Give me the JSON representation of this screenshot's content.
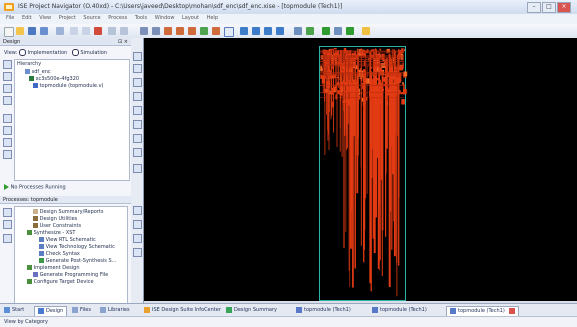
{
  "window": {
    "title": "ISE Project Navigator (O.40xd) - C:\\Users\\javeed\\Desktop\\mohan\\sdf_enc\\sdf_enc.xise - [topmodule (Tech1)]"
  },
  "menu": [
    "File",
    "Edit",
    "View",
    "Project",
    "Source",
    "Process",
    "Tools",
    "Window",
    "Layout",
    "Help"
  ],
  "design_panel": {
    "header": "Design",
    "view_label": "View:",
    "view_implementation": "Implementation",
    "view_simulation": "Simulation",
    "hierarchy_label": "Hierarchy",
    "tree": [
      "sdf_enc",
      "xc3s500e-4fg320",
      "topmodule (topmodule.v)"
    ],
    "no_processes": "No Processes Running",
    "processes_label": "Processes: topmodule",
    "processes": [
      "Design Summary/Reports",
      "Design Utilities",
      "User Constraints",
      "Synthesize - XST",
      "View RTL Schematic",
      "View Technology Schematic",
      "Check Syntax",
      "Generate Post-Synthesis S...",
      "Implement Design",
      "Generate Programming File",
      "Configure Target Device"
    ]
  },
  "bottom_tabs": [
    {
      "label": "Start"
    },
    {
      "label": "Design"
    },
    {
      "label": "Files"
    },
    {
      "label": "Libraries"
    },
    {
      "label": "ISE Design Suite InfoCenter"
    },
    {
      "label": "Design Summary"
    },
    {
      "label": "topmodule (Tech1)"
    },
    {
      "label": "topmodule (Tech1)"
    },
    {
      "label": "topmodule (Tech1)"
    }
  ],
  "status": {
    "left": "View by Category"
  },
  "colors": {
    "fabric_red": "#e23a12",
    "frame_teal": "#29b2a6",
    "background": "#000000"
  }
}
